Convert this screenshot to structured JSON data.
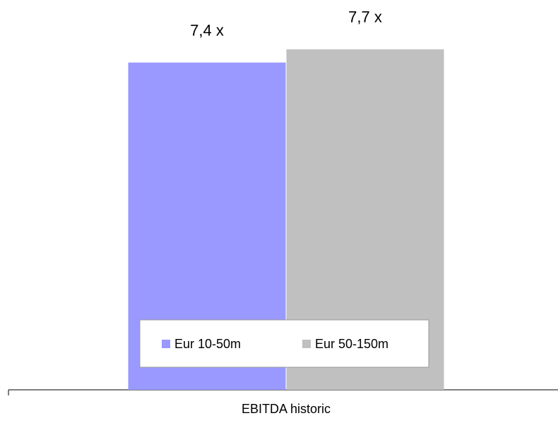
{
  "chart_data": {
    "type": "bar",
    "categories": [
      "EBITDA historic"
    ],
    "series": [
      {
        "name": "Eur 10-50m",
        "color": "#9999ff",
        "values": [
          7.4
        ],
        "value_labels": [
          "7,4 x"
        ]
      },
      {
        "name": "Eur 50-150m",
        "color": "#c0c0c0",
        "values": [
          7.7
        ],
        "value_labels": [
          "7,7 x"
        ]
      }
    ],
    "ylim": [
      0,
      8
    ],
    "legend": "bottom"
  }
}
